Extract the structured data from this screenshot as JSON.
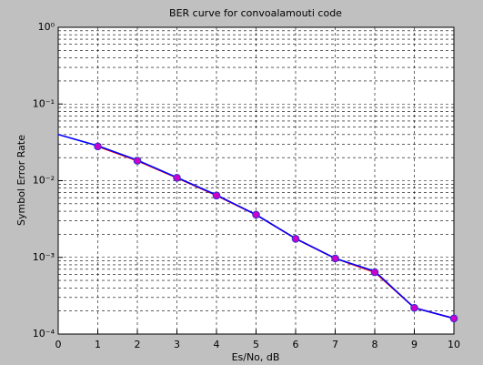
{
  "chart_data": {
    "type": "line",
    "title": "BER curve for convoalamouti code",
    "x_label": "Es/No, dB",
    "y_label": "Symbol Error Rate",
    "x": [
      0,
      1,
      2,
      3,
      4,
      5,
      6,
      7,
      8,
      9,
      10
    ],
    "series": [
      {
        "color": "#ff0000",
        "marker": "circle",
        "marker_fill": "#cc00cc",
        "values": [
          null,
          0.028,
          0.0182,
          0.0109,
          0.0064,
          0.0036,
          0.00175,
          0.00097,
          0.00064,
          0.00022,
          0.00016
        ]
      },
      {
        "color": "#0000ff",
        "marker": "none",
        "values": [
          0.04,
          0.0285,
          0.0185,
          0.011,
          0.0065,
          0.0036,
          0.00176,
          0.00097,
          0.00066,
          0.00022,
          0.00016
        ]
      }
    ],
    "xlim": [
      0,
      10
    ],
    "xticks": [
      0,
      1,
      2,
      3,
      4,
      5,
      6,
      7,
      8,
      9,
      10
    ],
    "ylim": [
      0.0001,
      1
    ],
    "yticks": [
      {
        "value": 0.0001,
        "label": "10⁻⁴"
      },
      {
        "value": 0.001,
        "label": "10⁻³"
      },
      {
        "value": 0.01,
        "label": "10⁻²"
      },
      {
        "value": 0.1,
        "label": "10⁻¹"
      },
      {
        "value": 1,
        "label": "10⁰"
      }
    ],
    "y_log": true,
    "grid": true,
    "minor_grid": true
  }
}
